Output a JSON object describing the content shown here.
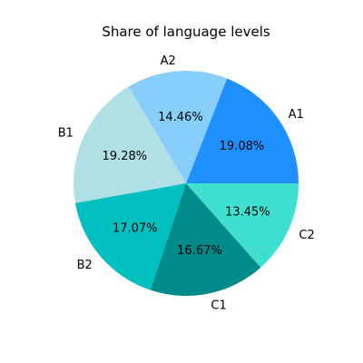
{
  "chart_data": {
    "type": "pie",
    "title": "Share of language levels",
    "start_angle_deg": 0,
    "direction": "counterclockwise",
    "slices": [
      {
        "label": "A1",
        "value": 19.08,
        "pct_label": "19.08%",
        "color": "#1E90FF"
      },
      {
        "label": "A2",
        "value": 14.46,
        "pct_label": "14.46%",
        "color": "#87CEFA"
      },
      {
        "label": "B1",
        "value": 19.28,
        "pct_label": "19.28%",
        "color": "#B0E0E6"
      },
      {
        "label": "B2",
        "value": 17.07,
        "pct_label": "17.07%",
        "color": "#00BFBF"
      },
      {
        "label": "C1",
        "value": 16.67,
        "pct_label": "16.67%",
        "color": "#008B8B"
      },
      {
        "label": "C2",
        "value": 13.45,
        "pct_label": "13.45%",
        "color": "#40E0D0"
      }
    ]
  }
}
